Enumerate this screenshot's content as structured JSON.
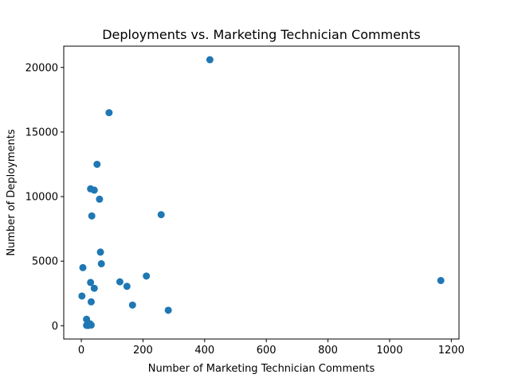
{
  "chart_data": {
    "type": "scatter",
    "title": "Deployments vs. Marketing Technician Comments",
    "xlabel": "Number of Marketing Technician Comments",
    "ylabel": "Number of Deployments",
    "xlim": [
      -57,
      1225
    ],
    "ylim": [
      -1030,
      21650
    ],
    "xticks": [
      0,
      200,
      400,
      600,
      800,
      1000,
      1200
    ],
    "yticks": [
      0,
      5000,
      10000,
      15000,
      20000
    ],
    "grid": false,
    "marker_color": "#1f77b4",
    "points": [
      {
        "x": 417,
        "y": 20600
      },
      {
        "x": 90,
        "y": 16500
      },
      {
        "x": 51,
        "y": 12500
      },
      {
        "x": 30,
        "y": 10600
      },
      {
        "x": 42,
        "y": 10500
      },
      {
        "x": 59,
        "y": 9800
      },
      {
        "x": 259,
        "y": 8600
      },
      {
        "x": 34,
        "y": 8500
      },
      {
        "x": 62,
        "y": 5700
      },
      {
        "x": 65,
        "y": 4800
      },
      {
        "x": 5,
        "y": 4500
      },
      {
        "x": 211,
        "y": 3850
      },
      {
        "x": 1166,
        "y": 3500
      },
      {
        "x": 125,
        "y": 3400
      },
      {
        "x": 30,
        "y": 3350
      },
      {
        "x": 148,
        "y": 3050
      },
      {
        "x": 42,
        "y": 2900
      },
      {
        "x": 2,
        "y": 2300
      },
      {
        "x": 32,
        "y": 1850
      },
      {
        "x": 166,
        "y": 1600
      },
      {
        "x": 282,
        "y": 1200
      },
      {
        "x": 17,
        "y": 500
      },
      {
        "x": 28,
        "y": 150
      },
      {
        "x": 32,
        "y": 50
      },
      {
        "x": 17,
        "y": 30
      },
      {
        "x": 22,
        "y": 20
      }
    ]
  }
}
